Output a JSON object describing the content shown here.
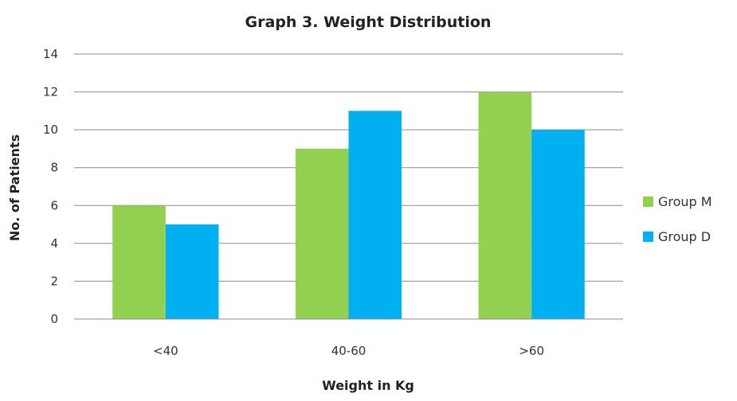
{
  "chart_data": {
    "type": "bar",
    "title": "Graph 3. Weight Distribution",
    "xlabel": "Weight in Kg",
    "ylabel": "No. of Patients",
    "categories": [
      "<40",
      "40-60",
      ">60"
    ],
    "series": [
      {
        "name": "Group M",
        "values": [
          6,
          9,
          12
        ],
        "color": "#92d050"
      },
      {
        "name": "Group D",
        "values": [
          5,
          11,
          10
        ],
        "color": "#00b0f0"
      }
    ],
    "ylim": [
      0,
      14
    ],
    "yticks": [
      0,
      2,
      4,
      6,
      8,
      10,
      12,
      14
    ],
    "grid": true,
    "legend_position": "right"
  }
}
